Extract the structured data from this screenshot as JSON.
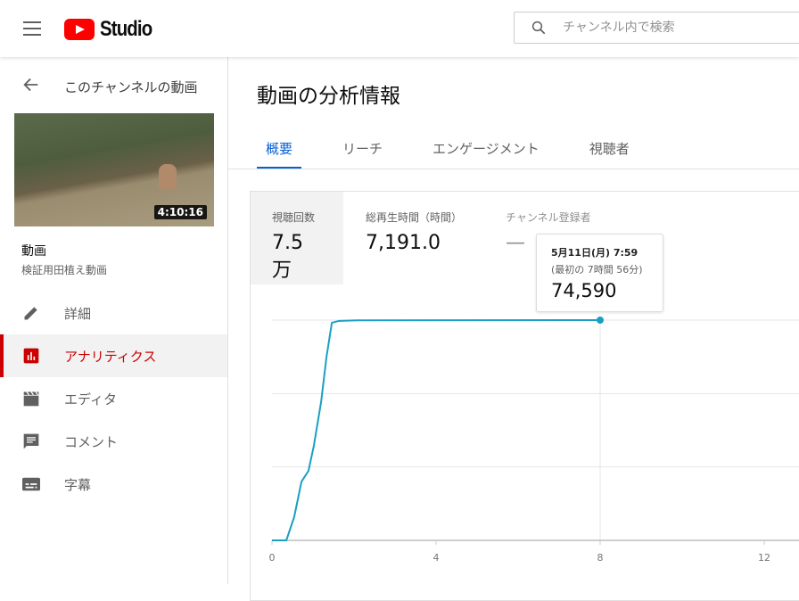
{
  "header": {
    "logo_text": "Studio",
    "search_placeholder": "チャンネル内で検索",
    "icons": [
      "menu-icon",
      "search-icon"
    ]
  },
  "sidebar": {
    "back_label": "このチャンネルの動画",
    "video": {
      "duration": "4:10:16",
      "title": "動画",
      "subtitle": "検証用田植え動画"
    },
    "items": [
      {
        "label": "詳細",
        "icon": "pencil-icon"
      },
      {
        "label": "アナリティクス",
        "icon": "analytics-icon",
        "active": true
      },
      {
        "label": "エディタ",
        "icon": "clapperboard-icon"
      },
      {
        "label": "コメント",
        "icon": "comment-icon"
      },
      {
        "label": "字幕",
        "icon": "subtitles-icon"
      }
    ]
  },
  "main": {
    "title": "動画の分析情報",
    "tabs": [
      {
        "label": "概要",
        "active": true
      },
      {
        "label": "リーチ"
      },
      {
        "label": "エンゲージメント"
      },
      {
        "label": "視聴者"
      }
    ],
    "metrics": [
      {
        "label": "視聴回数",
        "value": "7.5万"
      },
      {
        "label": "総再生時間（時間）",
        "value": "7,191.0"
      },
      {
        "label": "チャンネル登録者",
        "value": "—"
      }
    ],
    "tooltip": {
      "date": "5月11日(月) 7:59",
      "subtitle": "(最初の 7時間 56分)",
      "value": "74,590"
    }
  },
  "colors": {
    "accent": "#065fd4",
    "active_nav": "#cc0000",
    "line": "#1a9fc4"
  },
  "chart_data": {
    "type": "line",
    "xlabel": "",
    "ylabel": "",
    "x_ticks": [
      "0",
      "4",
      "8",
      "12"
    ],
    "xlim": [
      0,
      13
    ],
    "ylim": [
      0,
      74590
    ],
    "grid": true,
    "x": [
      0,
      0.35,
      0.54,
      0.72,
      0.89,
      1.02,
      1.2,
      1.33,
      1.46,
      1.63,
      2.07,
      8.0
    ],
    "values": [
      0,
      0,
      7850,
      19900,
      23550,
      32000,
      47100,
      62200,
      73700,
      74300,
      74500,
      74590
    ],
    "highlight": {
      "x": 8.0,
      "value": 74590
    }
  }
}
